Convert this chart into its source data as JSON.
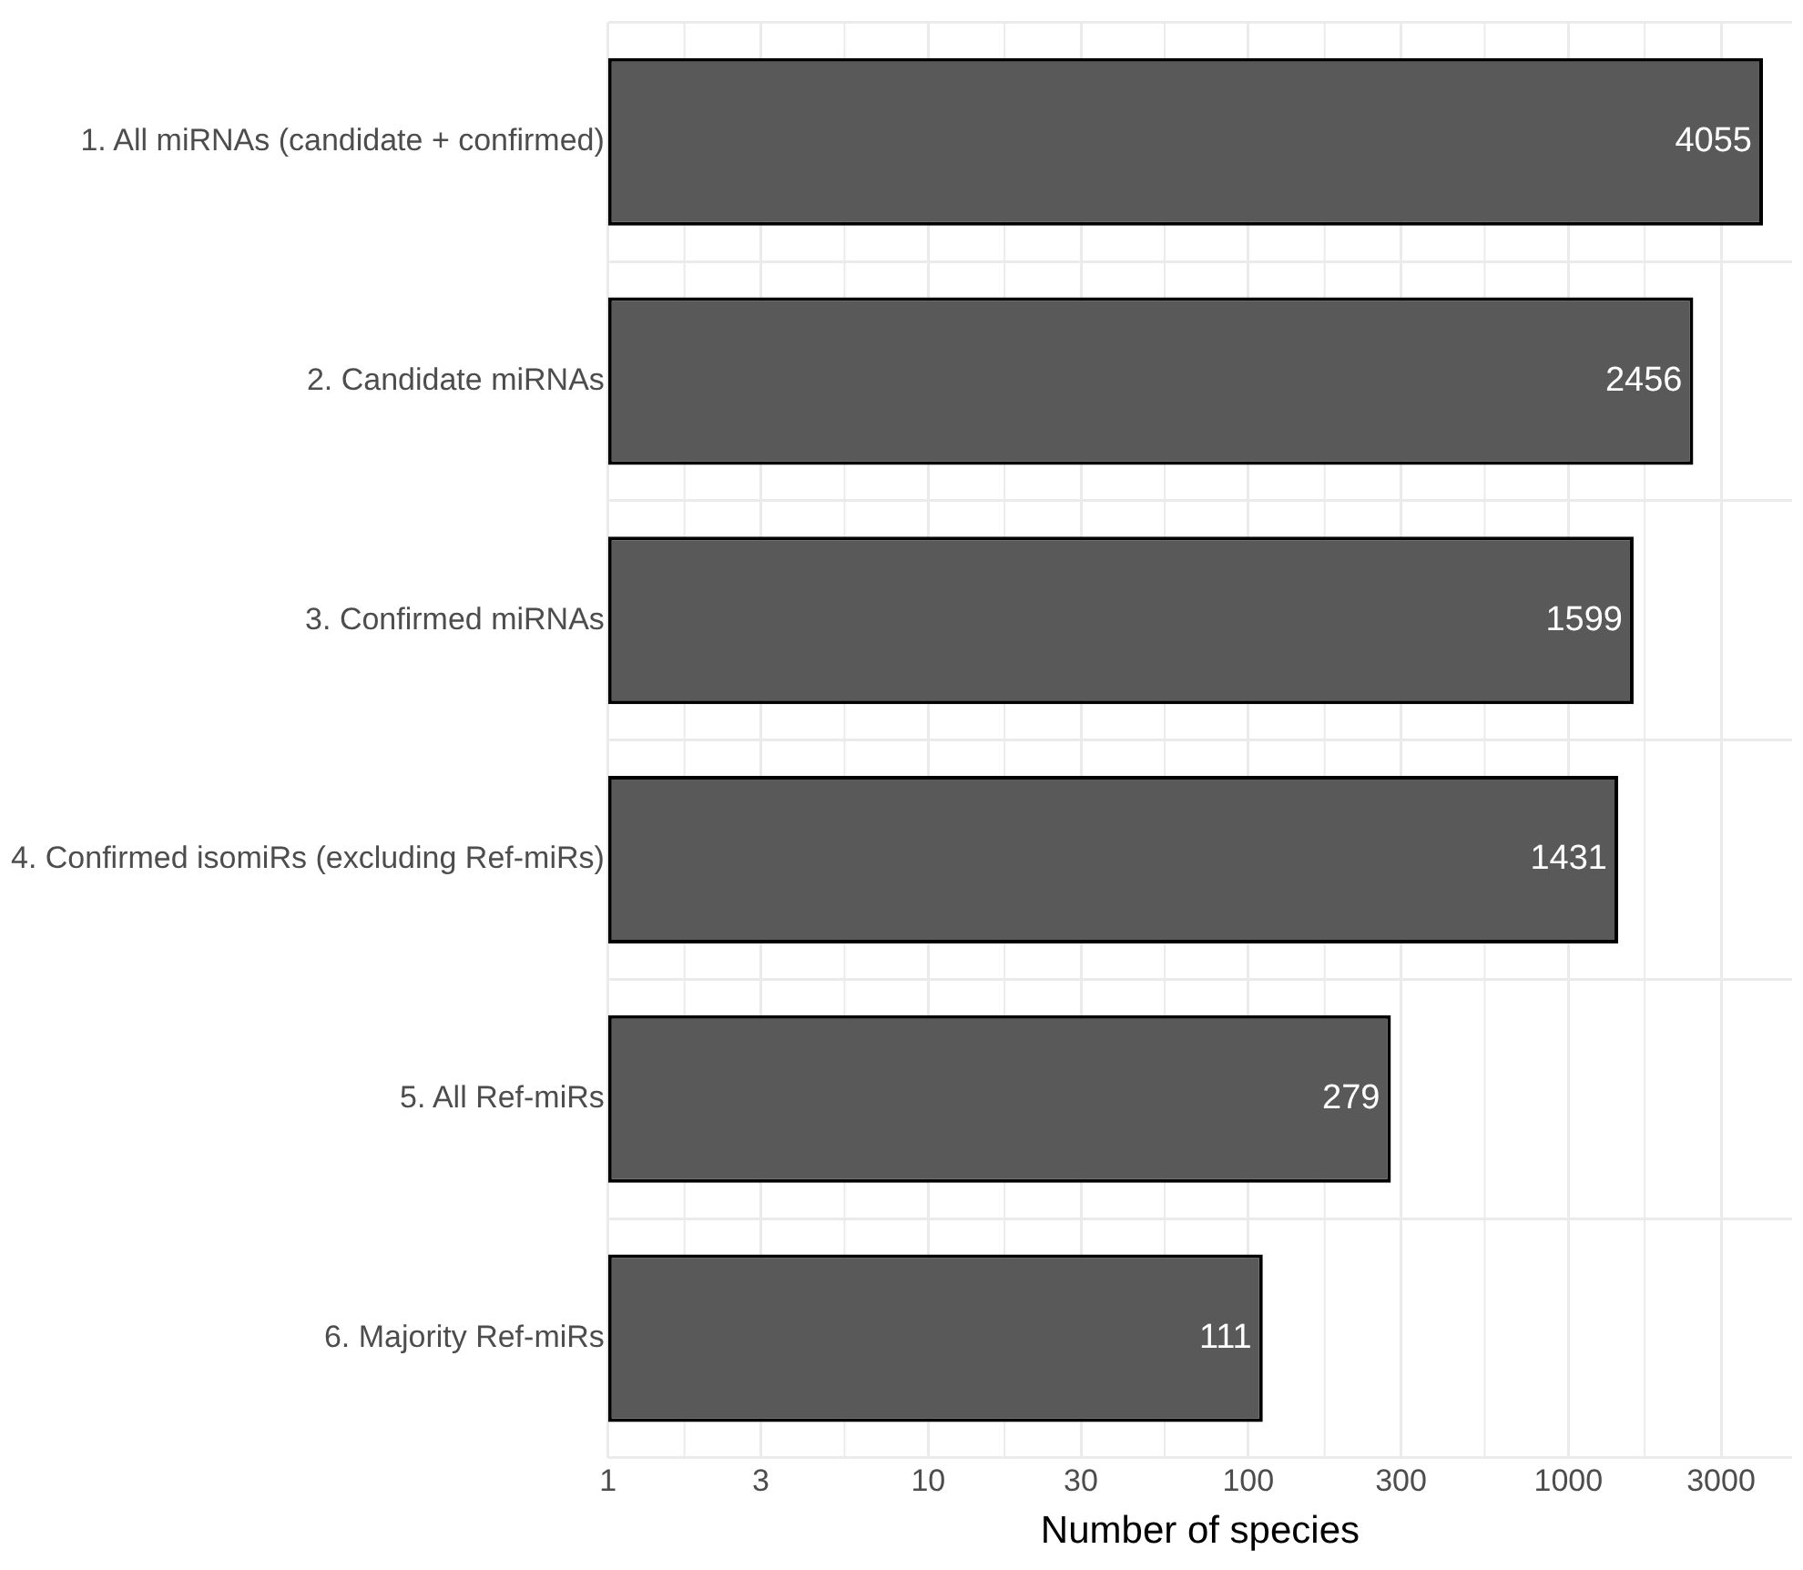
{
  "chart_data": {
    "type": "bar",
    "orientation": "horizontal",
    "xlabel": "Number of species",
    "categories": [
      "1. All miRNAs (candidate + confirmed)",
      "2. Candidate miRNAs",
      "3. Confirmed miRNAs",
      "4. Confirmed isomiRs (excluding Ref-miRs)",
      "5. All Ref-miRs",
      "6. Majority Ref-miRs"
    ],
    "values": [
      4055,
      2456,
      1599,
      1431,
      279,
      111
    ],
    "color": "#595959",
    "log": "x",
    "xlim": [
      1,
      5000
    ],
    "xticks": [
      1,
      3,
      10,
      30,
      100,
      300,
      1000,
      3000
    ],
    "grid": true,
    "data_labels": true,
    "legend": false
  }
}
